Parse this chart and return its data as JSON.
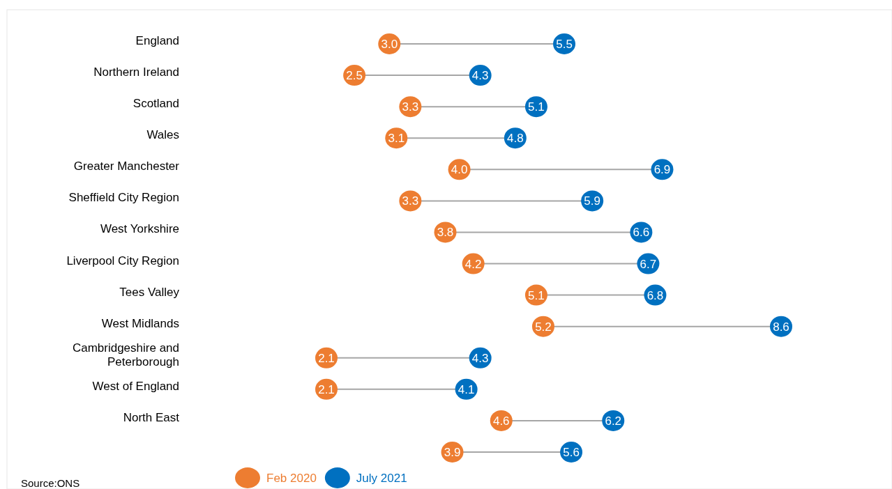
{
  "chart_data": {
    "type": "scatter",
    "orientation": "horizontal",
    "categories": [
      "England",
      "Northern Ireland",
      "Scotland",
      "Wales",
      "Greater Manchester",
      "Sheffield City Region",
      "West Yorkshire",
      "Liverpool City Region",
      "Tees Valley",
      "West Midlands",
      "Cambridgeshire and Peterborough",
      "West of England",
      "North East",
      null
    ],
    "series": [
      {
        "name": "Feb 2020",
        "color": "#ed7d31",
        "values": [
          3.0,
          2.5,
          3.3,
          3.1,
          4.0,
          3.3,
          3.8,
          4.2,
          5.1,
          5.2,
          2.1,
          2.1,
          4.6,
          3.9
        ],
        "value_labels": [
          "3.0",
          "2.5",
          "3.3",
          "3.1",
          "4.0",
          "3.3",
          "3.8",
          "4.2",
          "5.1",
          "5.2",
          "2.1",
          "2.1",
          "4.6",
          "3.9"
        ]
      },
      {
        "name": "July 2021",
        "color": "#0070c0",
        "values": [
          5.5,
          4.3,
          5.1,
          4.8,
          6.9,
          5.9,
          6.6,
          6.7,
          6.8,
          8.6,
          4.3,
          4.1,
          6.2,
          5.6
        ],
        "value_labels": [
          "5.5",
          "4.3",
          "5.1",
          "4.8",
          "6.9",
          "5.9",
          "6.6",
          "6.7",
          "6.8",
          "8.6",
          "4.3",
          "4.1",
          "6.2",
          "5.6"
        ]
      }
    ],
    "legend": "bottom",
    "annotations": [
      "Source:ONS"
    ]
  }
}
